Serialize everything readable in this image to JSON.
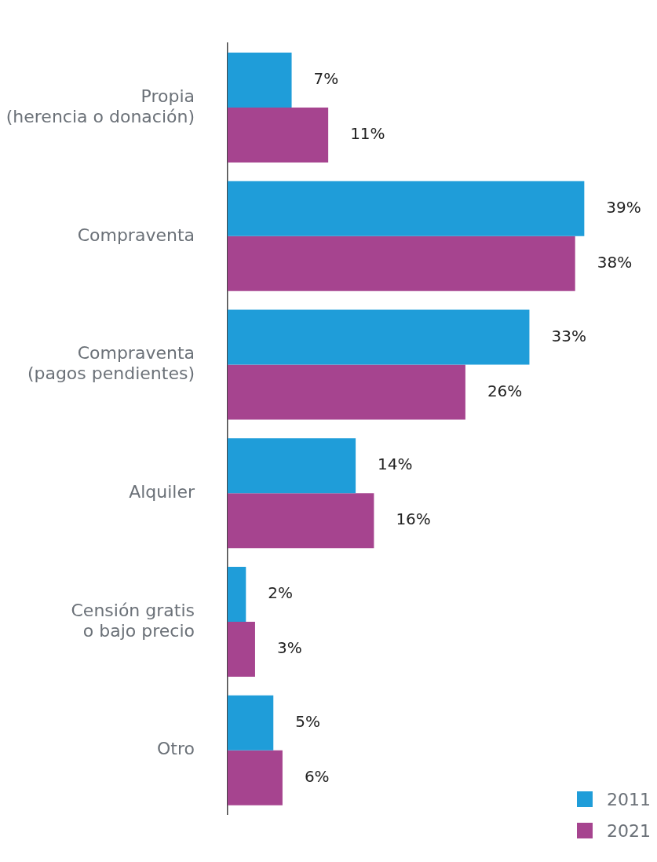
{
  "chart_data": {
    "type": "bar",
    "orientation": "horizontal",
    "categories": [
      "Propia\n(herencia o donación)",
      "Compraventa",
      "Compraventa\n(pagos pendientes)",
      "Alquiler",
      "Censión gratis\no bajo precio",
      "Otro"
    ],
    "series": [
      {
        "name": "2011",
        "color": "#1f9dd9",
        "values": [
          7,
          39,
          33,
          14,
          2,
          5
        ],
        "value_labels": [
          "7%",
          "39%",
          "33%",
          "14%",
          "2%",
          "5%"
        ]
      },
      {
        "name": "2021",
        "color": "#a6448f",
        "values": [
          11,
          38,
          26,
          16,
          3,
          6
        ],
        "value_labels": [
          "11%",
          "38%",
          "26%",
          "16%",
          "3%",
          "6%"
        ]
      }
    ],
    "tick_labels": "y",
    "legend": "bottom right"
  }
}
